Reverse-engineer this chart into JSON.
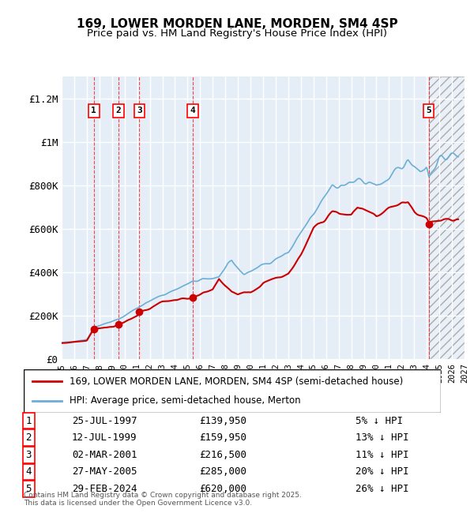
{
  "title": "169, LOWER MORDEN LANE, MORDEN, SM4 4SP",
  "subtitle": "Price paid vs. HM Land Registry's House Price Index (HPI)",
  "footer": "Contains HM Land Registry data © Crown copyright and database right 2025.\nThis data is licensed under the Open Government Licence v3.0.",
  "legend_line1": "169, LOWER MORDEN LANE, MORDEN, SM4 4SP (semi-detached house)",
  "legend_line2": "HPI: Average price, semi-detached house, Merton",
  "hpi_color": "#6baed6",
  "price_color": "#cc0000",
  "ylim": [
    0,
    1300000
  ],
  "yticks": [
    0,
    200000,
    400000,
    600000,
    800000,
    1000000,
    1200000
  ],
  "ytick_labels": [
    "£0",
    "£200K",
    "£400K",
    "£600K",
    "£800K",
    "£1M",
    "£1.2M"
  ],
  "xstart_year": 1995,
  "xend_year": 2027,
  "sales": [
    {
      "num": 1,
      "date": "25-JUL-1997",
      "year": 1997.56,
      "price": 139950,
      "hpi_pct": "5% ↓ HPI"
    },
    {
      "num": 2,
      "date": "12-JUL-1999",
      "year": 1999.53,
      "price": 159950,
      "hpi_pct": "13% ↓ HPI"
    },
    {
      "num": 3,
      "date": "02-MAR-2001",
      "year": 2001.17,
      "price": 216500,
      "hpi_pct": "11% ↓ HPI"
    },
    {
      "num": 4,
      "date": "27-MAY-2005",
      "year": 2005.41,
      "price": 285000,
      "hpi_pct": "20% ↓ HPI"
    },
    {
      "num": 5,
      "date": "29-FEB-2024",
      "year": 2024.16,
      "price": 620000,
      "hpi_pct": "26% ↓ HPI"
    }
  ]
}
